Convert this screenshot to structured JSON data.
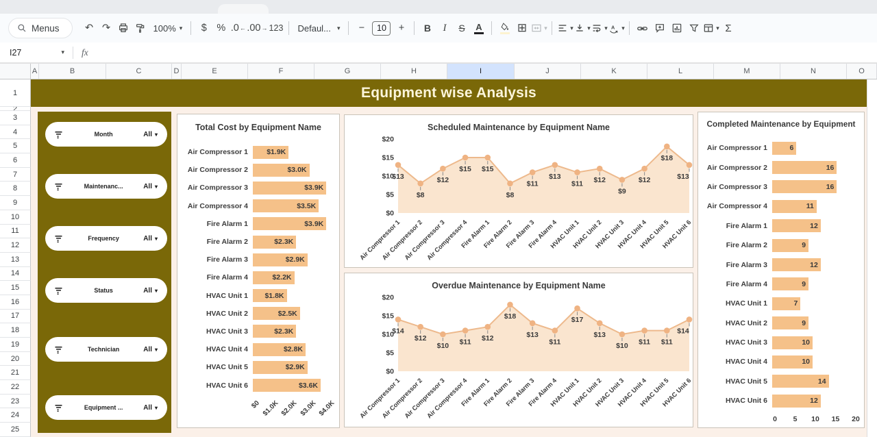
{
  "toolbar": {
    "menus_label": "Menus",
    "zoom_value": "100%",
    "currency": "$",
    "percent": "%",
    "dec_less": ".0",
    "dec_more": ".00",
    "more_formats": "123",
    "font_value": "Defaul...",
    "size_minus": "−",
    "size_value": "10",
    "size_plus": "+",
    "bold": "B",
    "italic": "I",
    "strike": "S",
    "text_color": "A",
    "rotate": "A",
    "sigma": "Σ"
  },
  "icons": {
    "undo": "↶",
    "redo": "↷",
    "borders": "⊞",
    "caret": "▾",
    "all_caret": "▾"
  },
  "formula_bar": {
    "name_box": "I27",
    "fx": "fx"
  },
  "sheet": {
    "columns": [
      "A",
      "B",
      "C",
      "D",
      "E",
      "F",
      "G",
      "H",
      "I",
      "J",
      "K",
      "L",
      "M",
      "N",
      "O"
    ],
    "selected_column": "I",
    "row_count": 25,
    "banner_title": "Equipment wise Analysis"
  },
  "filters": {
    "items": [
      {
        "label": "Month",
        "value": "All"
      },
      {
        "label": "Maintenanc...",
        "value": "All"
      },
      {
        "label": "Frequency",
        "value": "All"
      },
      {
        "label": "Status",
        "value": "All"
      },
      {
        "label": "Technician",
        "value": "All"
      },
      {
        "label": "Equipment ...",
        "value": "All"
      }
    ]
  },
  "chart_data": [
    {
      "id": "total_cost",
      "type": "bar",
      "orientation": "horizontal",
      "title": "Total Cost by Equipment Name",
      "categories": [
        "Air Compressor 1",
        "Air Compressor 2",
        "Air Compressor 3",
        "Air Compressor 4",
        "Fire Alarm 1",
        "Fire Alarm 2",
        "Fire Alarm 3",
        "Fire Alarm 4",
        "HVAC Unit 1",
        "HVAC Unit 2",
        "HVAC Unit 3",
        "HVAC Unit 4",
        "HVAC Unit 5",
        "HVAC Unit 6"
      ],
      "values": [
        1.9,
        3.0,
        3.9,
        3.5,
        3.9,
        2.3,
        2.9,
        2.2,
        1.8,
        2.5,
        2.3,
        2.8,
        2.9,
        3.6
      ],
      "value_labels": [
        "$1.9K",
        "$3.0K",
        "$3.9K",
        "$3.5K",
        "$3.9K",
        "$2.3K",
        "$2.9K",
        "$2.2K",
        "$1.8K",
        "$2.5K",
        "$2.3K",
        "$2.8K",
        "$2.9K",
        "$3.6K"
      ],
      "x_ticks": [
        "$0",
        "$1.0K",
        "$2.0K",
        "$3.0K",
        "$4.0K"
      ],
      "x_tick_values": [
        0,
        1,
        2,
        3,
        4
      ],
      "xlim": [
        0,
        4
      ],
      "legend": "none",
      "grid": false
    },
    {
      "id": "scheduled",
      "type": "area",
      "title": "Scheduled Maintenance by Equipment Name",
      "categories": [
        "Air Compressor 1",
        "Air Compressor 2",
        "Air Compressor 3",
        "Air Compressor 4",
        "Fire Alarm 1",
        "Fire Alarm 2",
        "Fire Alarm 3",
        "Fire Alarm 4",
        "HVAC Unit 1",
        "HVAC Unit 2",
        "HVAC Unit 3",
        "HVAC Unit 4",
        "HVAC Unit 5",
        "HVAC Unit 6"
      ],
      "values": [
        13,
        8,
        12,
        15,
        15,
        8,
        11,
        13,
        11,
        12,
        9,
        12,
        18,
        13
      ],
      "value_labels": [
        "$13",
        "$8",
        "$12",
        "$15",
        "$15",
        "$8",
        "$11",
        "$13",
        "$11",
        "$12",
        "$9",
        "$12",
        "$18",
        "$13"
      ],
      "y_ticks": [
        "$0",
        "$5",
        "$10",
        "$15",
        "$20"
      ],
      "y_tick_values": [
        0,
        5,
        10,
        15,
        20
      ],
      "ylim": [
        0,
        20
      ],
      "legend": "none",
      "grid": false
    },
    {
      "id": "overdue",
      "type": "area",
      "title": "Overdue Maintenance by Equipment Name",
      "categories": [
        "Air Compressor 1",
        "Air Compressor 2",
        "Air Compressor 3",
        "Air Compressor 4",
        "Fire Alarm 1",
        "Fire Alarm 2",
        "Fire Alarm 3",
        "Fire Alarm 4",
        "HVAC Unit 1",
        "HVAC Unit 2",
        "HVAC Unit 3",
        "HVAC Unit 4",
        "HVAC Unit 5",
        "HVAC Unit 6"
      ],
      "values": [
        14,
        12,
        10,
        11,
        12,
        18,
        13,
        11,
        17,
        13,
        10,
        11,
        11,
        14
      ],
      "value_labels": [
        "$14",
        "$12",
        "$10",
        "$11",
        "$12",
        "$18",
        "$13",
        "$11",
        "$17",
        "$13",
        "$10",
        "$11",
        "$11",
        "$14"
      ],
      "y_ticks": [
        "$0",
        "$5",
        "$10",
        "$15",
        "$20"
      ],
      "y_tick_values": [
        0,
        5,
        10,
        15,
        20
      ],
      "ylim": [
        0,
        20
      ],
      "legend": "none",
      "grid": false
    },
    {
      "id": "completed",
      "type": "bar",
      "orientation": "horizontal",
      "title": "Completed Maintenance by Equipment",
      "categories": [
        "Air Compressor 1",
        "Air Compressor 2",
        "Air Compressor 3",
        "Air Compressor 4",
        "Fire Alarm 1",
        "Fire Alarm 2",
        "Fire Alarm 3",
        "Fire Alarm 4",
        "HVAC Unit 1",
        "HVAC Unit 2",
        "HVAC Unit 3",
        "HVAC Unit 4",
        "HVAC Unit 5",
        "HVAC Unit 6"
      ],
      "values": [
        6,
        16,
        16,
        11,
        12,
        9,
        12,
        9,
        7,
        9,
        10,
        10,
        14,
        12
      ],
      "value_labels": [
        "6",
        "16",
        "16",
        "11",
        "12",
        "9",
        "12",
        "9",
        "7",
        "9",
        "10",
        "10",
        "14",
        "12"
      ],
      "x_ticks": [
        "0",
        "5",
        "10",
        "15",
        "20"
      ],
      "x_tick_values": [
        0,
        5,
        10,
        15,
        20
      ],
      "xlim": [
        0,
        20
      ],
      "legend": "none",
      "grid": false
    }
  ],
  "colors": {
    "olive": "#7a6808",
    "banner_text": "#fcf5da",
    "dashboard_bg": "#fbf0e8",
    "bar_fill": "#f5c189",
    "area_fill": "#fae5cf",
    "line": "#edb98c",
    "marker": "#efb383",
    "selected_header": "#d3e3fd",
    "panel_border": "#c9c3b9"
  }
}
